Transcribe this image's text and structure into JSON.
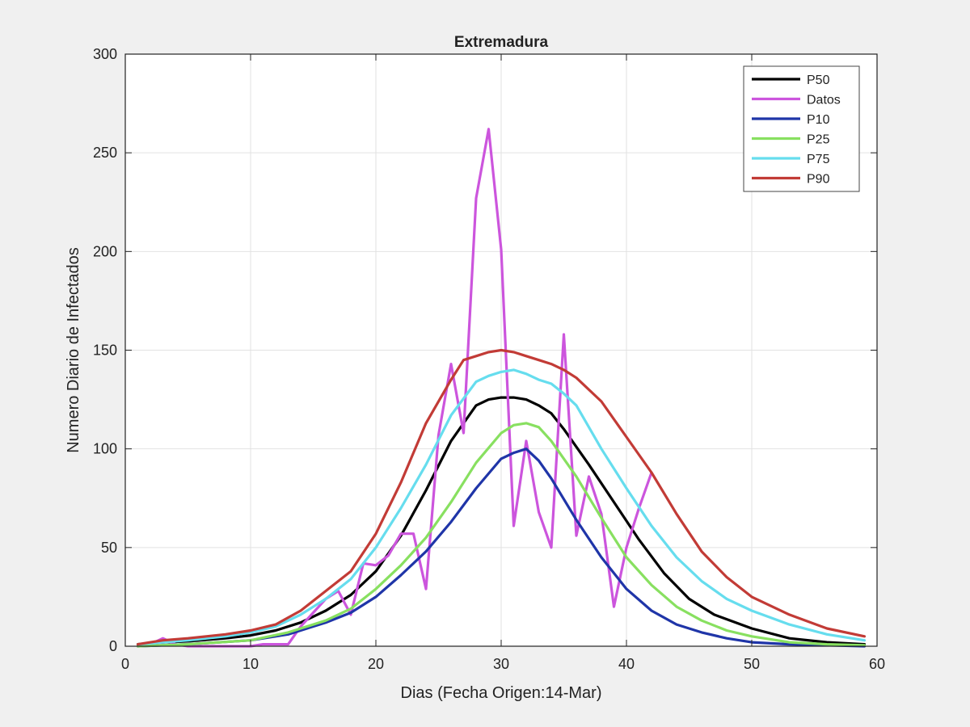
{
  "chart_data": {
    "type": "line",
    "title": "Extremadura",
    "xlabel": "Dias (Fecha Origen:14-Mar)",
    "ylabel": "Numero Diario de Infectados",
    "xlim": [
      0,
      60
    ],
    "ylim": [
      0,
      300
    ],
    "xticks": [
      0,
      10,
      20,
      30,
      40,
      50,
      60
    ],
    "yticks": [
      0,
      50,
      100,
      150,
      200,
      250,
      300
    ],
    "grid": true,
    "legend_position": "top-right",
    "series": [
      {
        "name": "P50",
        "color": "#000000",
        "x": [
          1,
          3,
          5,
          8,
          10,
          12,
          14,
          16,
          18,
          20,
          22,
          24,
          26,
          28,
          29,
          30,
          31,
          32,
          33,
          34,
          35,
          37,
          39,
          41,
          43,
          45,
          47,
          50,
          53,
          56,
          59
        ],
        "y": [
          1,
          2,
          2.5,
          4,
          5.5,
          8,
          12,
          18,
          26,
          38,
          56,
          79,
          104,
          122,
          125,
          126,
          126,
          125,
          122,
          118,
          110,
          92,
          73,
          54,
          37,
          24,
          16,
          9,
          4,
          2,
          1
        ]
      },
      {
        "name": "Datos",
        "color": "#cc55dd",
        "x": [
          1,
          2,
          3,
          4,
          5,
          6,
          7,
          8,
          9,
          10,
          11,
          12,
          13,
          14,
          15,
          16,
          17,
          18,
          19,
          20,
          21,
          22,
          23,
          24,
          25,
          26,
          27,
          28,
          29,
          30,
          31,
          32,
          33,
          34,
          35,
          36,
          37,
          38,
          39,
          40,
          41,
          42
        ],
        "y": [
          0,
          1,
          4,
          1,
          0,
          0,
          0,
          0,
          0,
          0,
          1,
          1,
          1,
          10,
          17,
          24,
          28,
          16,
          42,
          41,
          46,
          57,
          57,
          29,
          107,
          143,
          108,
          227,
          262,
          201,
          61,
          104,
          68,
          50,
          158,
          56,
          86,
          67,
          20,
          50,
          70,
          88
        ]
      },
      {
        "name": "P10",
        "color": "#1f35a8",
        "x": [
          1,
          5,
          10,
          13,
          16,
          18,
          20,
          22,
          24,
          26,
          28,
          30,
          31,
          32,
          33,
          34,
          36,
          38,
          40,
          42,
          44,
          46,
          48,
          50,
          53,
          56,
          59
        ],
        "y": [
          0,
          1,
          3,
          6,
          12,
          17,
          25,
          36,
          48,
          63,
          80,
          95,
          98,
          100,
          94,
          85,
          64,
          45,
          29,
          18,
          11,
          7,
          4,
          2,
          1,
          0.5,
          0
        ]
      },
      {
        "name": "P25",
        "color": "#88e060",
        "x": [
          1,
          5,
          10,
          13,
          16,
          18,
          20,
          22,
          24,
          26,
          28,
          30,
          31,
          32,
          33,
          34,
          36,
          38,
          40,
          42,
          44,
          46,
          48,
          50,
          53,
          56,
          59
        ],
        "y": [
          0,
          1,
          3,
          7,
          13,
          19,
          29,
          41,
          55,
          73,
          93,
          108,
          112,
          113,
          111,
          104,
          86,
          65,
          45,
          31,
          20,
          13,
          8,
          5,
          2,
          1,
          0.5
        ]
      },
      {
        "name": "P75",
        "color": "#66ddee",
        "x": [
          1,
          3,
          5,
          8,
          10,
          12,
          14,
          16,
          18,
          20,
          22,
          24,
          26,
          28,
          29,
          30,
          31,
          32,
          33,
          34,
          35,
          36,
          38,
          40,
          42,
          44,
          46,
          48,
          50,
          53,
          56,
          59
        ],
        "y": [
          1,
          2,
          3,
          5,
          7,
          10,
          16,
          24,
          34,
          50,
          70,
          92,
          117,
          134,
          137,
          139,
          140,
          138,
          135,
          133,
          128,
          122,
          100,
          80,
          61,
          45,
          33,
          24,
          18,
          11,
          6,
          3
        ]
      },
      {
        "name": "P90",
        "color": "#c23b36",
        "x": [
          1,
          3,
          5,
          8,
          10,
          12,
          14,
          16,
          18,
          20,
          22,
          24,
          26,
          27,
          28,
          29,
          30,
          31,
          32,
          33,
          34,
          35,
          36,
          38,
          40,
          42,
          44,
          46,
          48,
          50,
          53,
          56,
          59
        ],
        "y": [
          1,
          3,
          4,
          6,
          8,
          11,
          18,
          28,
          38,
          57,
          83,
          113,
          135,
          145,
          147,
          149,
          150,
          149,
          147,
          145,
          143,
          140,
          136,
          124,
          106,
          88,
          67,
          48,
          35,
          25,
          16,
          9,
          5
        ]
      }
    ]
  }
}
